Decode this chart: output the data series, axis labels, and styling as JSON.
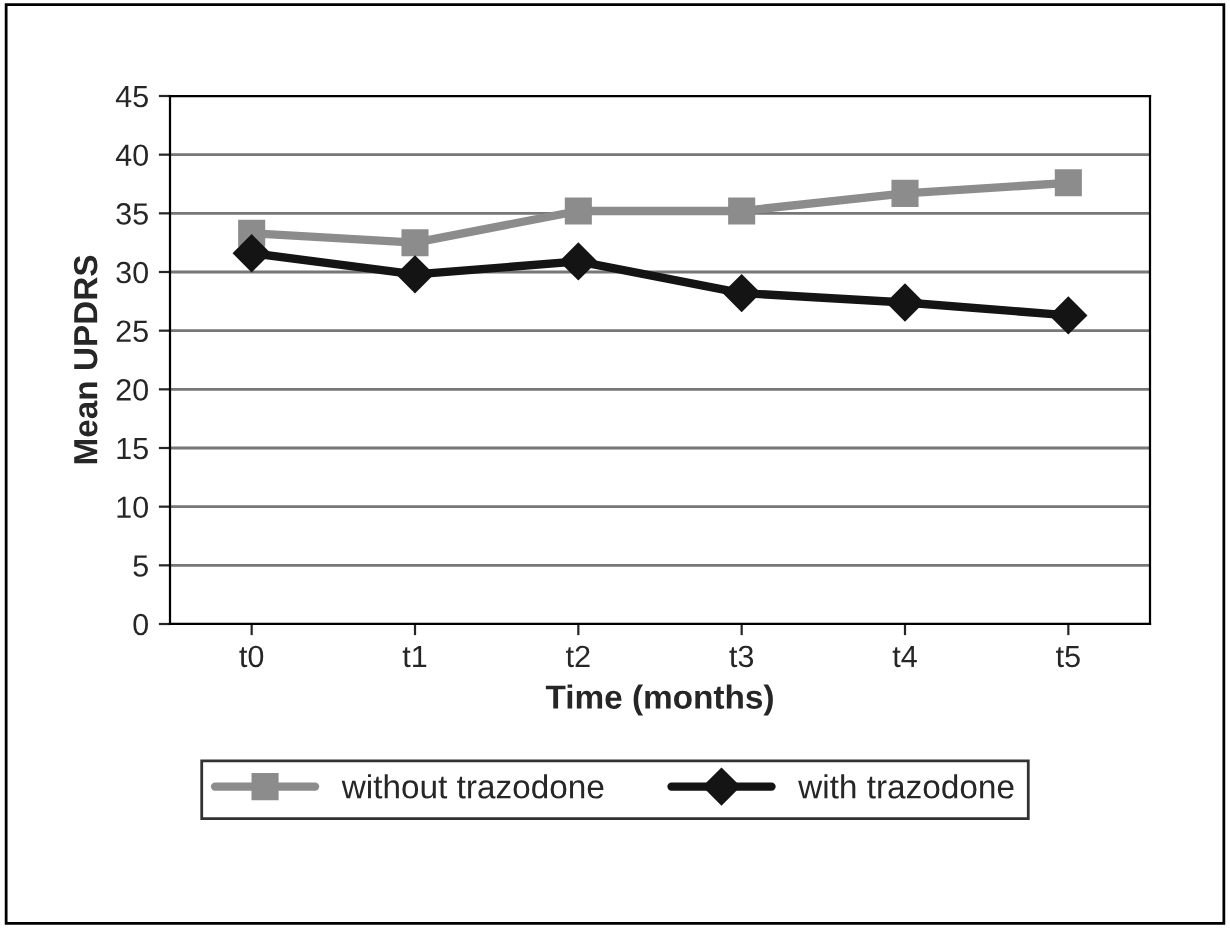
{
  "chart_data": {
    "type": "line",
    "xlabel": "Time (months)",
    "ylabel": "Mean UPDRS",
    "categories": [
      "t0",
      "t1",
      "t2",
      "t3",
      "t4",
      "t5"
    ],
    "series": [
      {
        "name": "without trazodone",
        "color": "#8c8c8c",
        "marker": "square",
        "values": [
          33.3,
          32.5,
          35.2,
          35.2,
          36.7,
          37.6
        ]
      },
      {
        "name": "with trazodone",
        "color": "#141414",
        "marker": "diamond",
        "values": [
          31.6,
          29.8,
          30.9,
          28.2,
          27.4,
          26.3
        ]
      }
    ],
    "ylim": [
      0,
      45
    ],
    "yticks": [
      0,
      5,
      10,
      15,
      20,
      25,
      30,
      35,
      40,
      45
    ],
    "grid": "y",
    "legend": "bottom"
  }
}
